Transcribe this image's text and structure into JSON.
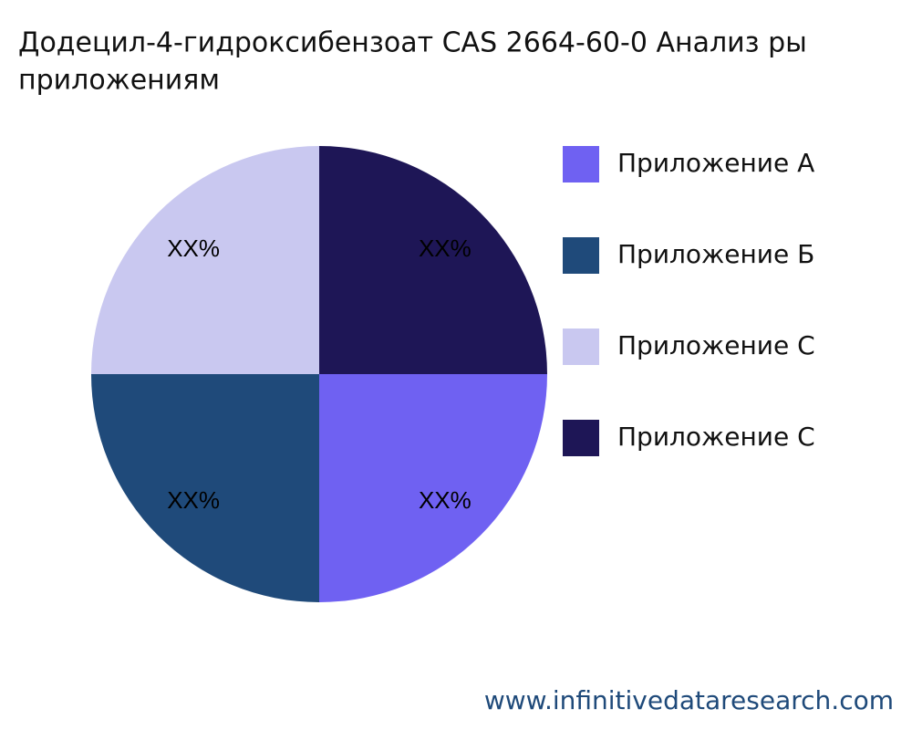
{
  "chart_data": {
    "type": "pie",
    "title": [
      "Додецил-4-гидроксибензоат CAS 2664-60-0 Анализ ры",
      "приложениям"
    ],
    "categories": [
      "Приложение A",
      "Приложение Б",
      "Приложение C",
      "Приложение C"
    ],
    "values": [
      25,
      25,
      25,
      25
    ],
    "value_labels": [
      "XX%",
      "XX%",
      "XX%",
      "XX%"
    ],
    "colors": [
      "#6f61f2",
      "#1f4a7a",
      "#c9c8f0",
      "#1e1656"
    ],
    "legend": "right",
    "source": "www.infinitivedataresearch.com"
  }
}
